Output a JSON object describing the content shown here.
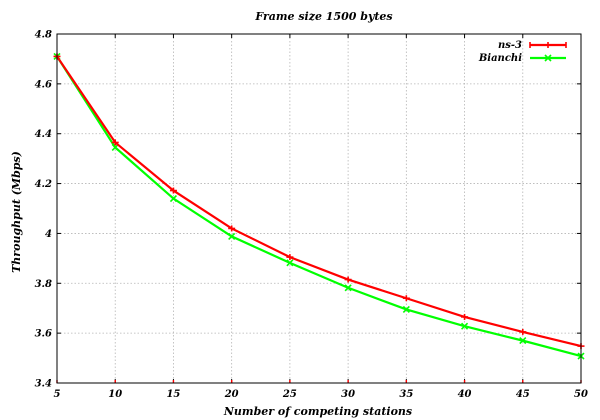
{
  "chart_data": {
    "type": "line",
    "title": "Frame size 1500 bytes",
    "xlabel": "Number of competing stations",
    "ylabel": "Throughput (Mbps)",
    "x": [
      5,
      10,
      15,
      20,
      25,
      30,
      35,
      40,
      45,
      50
    ],
    "xlim": [
      5,
      50
    ],
    "ylim": [
      3.4,
      4.8
    ],
    "xticks": [
      "5",
      "10",
      "15",
      "20",
      "25",
      "30",
      "35",
      "40",
      "45",
      "50"
    ],
    "yticks": [
      "3.4",
      "3.6",
      "3.8",
      "4",
      "4.2",
      "4.4",
      "4.6",
      "4.8"
    ],
    "grid": true,
    "legend_position": "top-right",
    "series": [
      {
        "name": "ns-3",
        "color": "#ff0000",
        "marker": "plus-errorbar",
        "values": [
          4.71,
          4.365,
          4.172,
          4.02,
          3.905,
          3.815,
          3.74,
          3.665,
          3.605,
          3.548
        ]
      },
      {
        "name": "Bianchi",
        "color": "#00ff00",
        "marker": "x",
        "values": [
          4.71,
          4.345,
          4.14,
          3.988,
          3.882,
          3.782,
          3.695,
          3.628,
          3.57,
          3.508
        ]
      }
    ]
  }
}
